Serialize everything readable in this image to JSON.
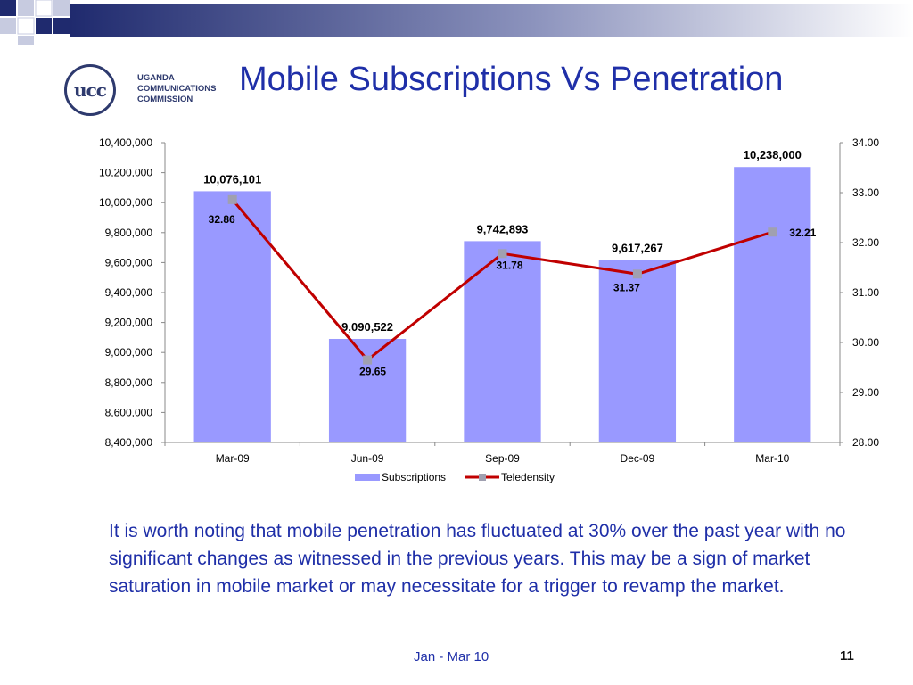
{
  "slide": {
    "title": "Mobile Subscriptions Vs Penetration",
    "logo_text": [
      "UGANDA",
      "COMMUNICATIONS",
      "COMMISSION"
    ],
    "logo_mark": "ucc",
    "body_text": "It is worth noting that mobile penetration has fluctuated at 30% over the past year with no significant changes as witnessed in the previous years. This may be a sign of market saturation in mobile market or may necessitate for a trigger to revamp the market.",
    "footer_date": "Jan - Mar 10",
    "page_number": "11"
  },
  "colors": {
    "title": "#1f2fa8",
    "bar": "#9999ff",
    "line": "#c00000",
    "marker": "#a0a0b0",
    "deco_dark": "#1f2a6e"
  },
  "chart_data": {
    "type": "bar",
    "categories": [
      "Mar-09",
      "Jun-09",
      "Sep-09",
      "Dec-09",
      "Mar-10"
    ],
    "series": [
      {
        "name": "Subscriptions",
        "type": "bar",
        "axis": "left",
        "values": [
          10076101,
          9090522,
          9742893,
          9617267,
          10238000
        ],
        "labels": [
          "10,076,101",
          "9,090,522",
          "9,742,893",
          "9,617,267",
          "10,238,000"
        ]
      },
      {
        "name": "Teledensity",
        "type": "line",
        "axis": "right",
        "values": [
          32.86,
          29.65,
          31.78,
          31.37,
          32.21
        ],
        "labels": [
          "32.86",
          "29.65",
          "31.78",
          "31.37",
          "32.21"
        ]
      }
    ],
    "y_left": {
      "range": [
        8400000,
        10400000
      ],
      "ticks": [
        "8,400,000",
        "8,600,000",
        "8,800,000",
        "9,000,000",
        "9,200,000",
        "9,400,000",
        "9,600,000",
        "9,800,000",
        "10,000,000",
        "10,200,000",
        "10,400,000"
      ]
    },
    "y_right": {
      "range": [
        28,
        34
      ],
      "ticks": [
        "28.00",
        "29.00",
        "30.00",
        "31.00",
        "32.00",
        "33.00",
        "34.00"
      ]
    },
    "grid": false,
    "legend": "bottom"
  }
}
